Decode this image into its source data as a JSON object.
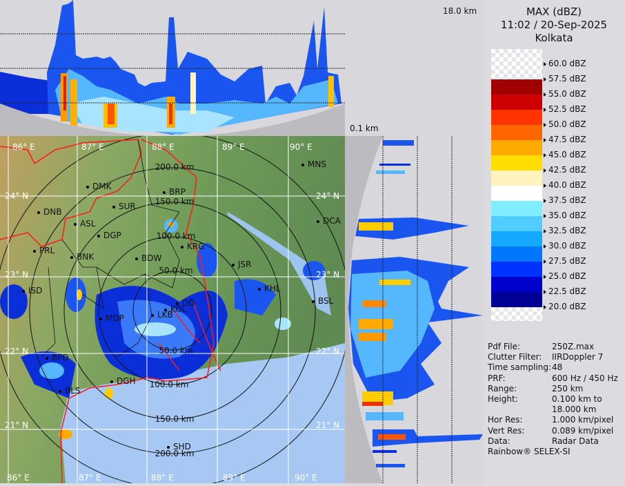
{
  "header": {
    "product": "MAX (dBZ)",
    "datetime": "11:02 / 20-Sep-2025",
    "station": "Kolkata"
  },
  "cross_section": {
    "top_height_label": "18.0 km",
    "bottom_height_label": "0.1 km"
  },
  "legend": {
    "ticks": [
      "60.0 dBZ",
      "57.5 dBZ",
      "55.0 dBZ",
      "52.5 dBZ",
      "50.0 dBZ",
      "47.5 dBZ",
      "45.0 dBZ",
      "42.5 dBZ",
      "40.0 dBZ",
      "37.5 dBZ",
      "35.0 dBZ",
      "32.5 dBZ",
      "30.0 dBZ",
      "27.5 dBZ",
      "25.0 dBZ",
      "22.5 dBZ",
      "20.0 dBZ"
    ],
    "colors": [
      "#a00000",
      "#cc0000",
      "#ff3300",
      "#ff6600",
      "#ffaa00",
      "#ffdd00",
      "#fff3c0",
      "#ffffff",
      "#80eeff",
      "#50ccff",
      "#14a8ff",
      "#0077ff",
      "#0033ff",
      "#0000cc",
      "#000099"
    ]
  },
  "info": [
    {
      "label": "Pdf File:",
      "value": "250Z.max"
    },
    {
      "label": "Clutter Filter:",
      "value": "IIRDoppler 7"
    },
    {
      "label": "Time sampling:",
      "value": "48"
    },
    {
      "label": "PRF:",
      "value": "600 Hz / 450 Hz"
    },
    {
      "label": "Range:",
      "value": "250 km"
    },
    {
      "label": "Height:",
      "value": "0.100 km to"
    },
    {
      "label": "",
      "value": "18.000 km"
    },
    {
      "label": "Hor Res:",
      "value": "1.000 km/pixel"
    },
    {
      "label": "Vert Res:",
      "value": "0.089 km/pixel"
    },
    {
      "label": "Data:",
      "value": "Radar Data"
    }
  ],
  "footer": "Rainbow® SELEX-SI",
  "map": {
    "rings": [
      "50.0 km",
      "100.0 km",
      "150.0 km",
      "200.0 km"
    ],
    "rings_below": [
      "50.0 km",
      "100.0 km",
      "150.0 km",
      "200.0 km"
    ],
    "lon_labels": [
      "86° E",
      "87° E",
      "88° E",
      "89° E",
      "90° E"
    ],
    "lat_labels": [
      "24° N",
      "23° N",
      "22° N",
      "21° N"
    ],
    "cities": [
      "MNS",
      "DMK",
      "BRP",
      "SUR",
      "DNB",
      "ASL",
      "DCA",
      "DGP",
      "KRG",
      "PRL",
      "BNK",
      "BDW",
      "JSR",
      "KHL",
      "ISD",
      "BSL",
      "DD",
      "KOL",
      "LKB",
      "MDP",
      "BPD",
      "DGH",
      "BLS",
      "SHD"
    ]
  }
}
